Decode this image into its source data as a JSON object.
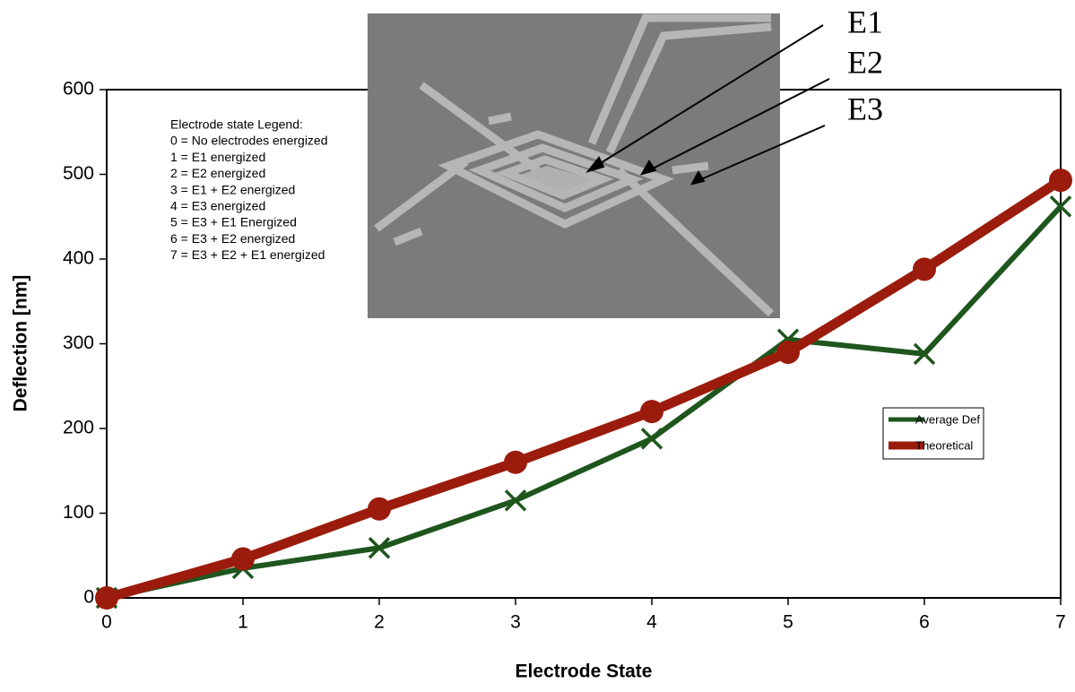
{
  "chart_data": {
    "type": "line",
    "x_label": "Electrode State",
    "y_label": "Deflection [nm]",
    "x": [
      0,
      1,
      2,
      3,
      4,
      5,
      6,
      7
    ],
    "series": [
      {
        "name": "Average Def",
        "color": "#1e561e",
        "marker": "x",
        "values": [
          0,
          35,
          59,
          115,
          188,
          305,
          288,
          462
        ]
      },
      {
        "name": "Theoretical",
        "color": "#9b1c0c",
        "marker": "circle",
        "values": [
          0,
          46,
          105,
          160,
          220,
          290,
          388,
          493
        ]
      }
    ],
    "xlim": [
      0,
      7
    ],
    "xticks": [
      0,
      1,
      2,
      3,
      4,
      5,
      6,
      7
    ],
    "ylim": [
      0,
      600
    ],
    "yticks": [
      0,
      100,
      200,
      300,
      400,
      500,
      600
    ],
    "grid": false,
    "legend": "right",
    "electrode_legend": {
      "title": "Electrode state Legend:",
      "items": [
        "0 = No electrodes energized",
        "1 = E1 energized",
        "2 = E2 energized",
        "3 = E1 + E2 energized",
        "4 = E3 energized",
        "5 = E3 + E1 Energized",
        "6 = E3 + E2 energized",
        "7 = E3 + E2 + E1 energized"
      ]
    },
    "image_labels": [
      "E1",
      "E2",
      "E3"
    ]
  }
}
